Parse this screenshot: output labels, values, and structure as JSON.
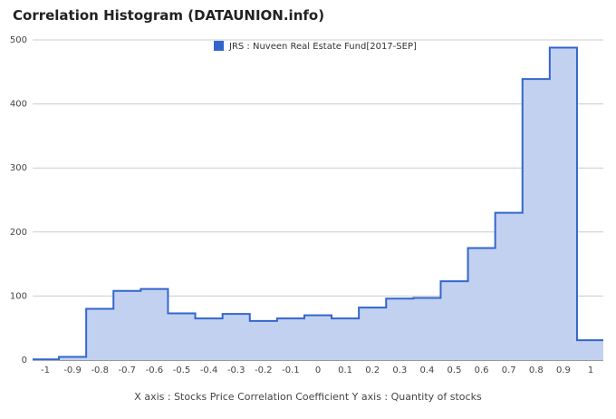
{
  "chart_data": {
    "type": "area",
    "title": "Correlation Histogram (DATAUNION.info)",
    "axis_caption": "X axis : Stocks Price Correlation Coefficient  Y axis : Quantity of stocks",
    "series": [
      {
        "name": "JRS : Nuveen Real Estate Fund[2017-SEP]",
        "color": "#3366cc",
        "fill": "#c3d1f1",
        "values": [
          1,
          5,
          80,
          108,
          111,
          73,
          65,
          72,
          61,
          65,
          70,
          65,
          82,
          96,
          97,
          123,
          175,
          230,
          439,
          488,
          31
        ]
      }
    ],
    "x": [
      -1.0,
      -0.9,
      -0.8,
      -0.7,
      -0.6,
      -0.5,
      -0.4,
      -0.3,
      -0.2,
      -0.1,
      0.0,
      0.1,
      0.2,
      0.3,
      0.4,
      0.5,
      0.6,
      0.7,
      0.8,
      0.9,
      1.0
    ],
    "x_ticks": [
      "-1",
      "-0.9",
      "-0.8",
      "-0.7",
      "-0.6",
      "-0.5",
      "-0.4",
      "-0.3",
      "-0.2",
      "-0.1",
      "0",
      "0.1",
      "0.2",
      "0.3",
      "0.4",
      "0.5",
      "0.6",
      "0.7",
      "0.8",
      "0.9",
      "1"
    ],
    "y_ticks": [
      0,
      100,
      200,
      300,
      400,
      500
    ],
    "ylim": [
      0,
      500
    ],
    "grid": true,
    "legend_position": "top"
  }
}
